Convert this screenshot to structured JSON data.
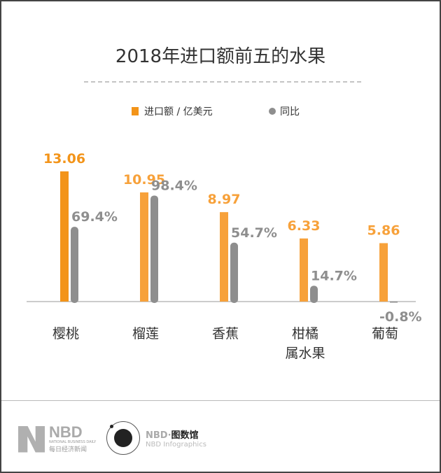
{
  "chart_data": {
    "type": "bar",
    "title": "2018年进口额前五的水果",
    "categories": [
      "樱桃",
      "榴莲",
      "香蕉",
      "柑橘\n属水果",
      "葡萄"
    ],
    "series": [
      {
        "name": "进口额 / 亿美元",
        "values": [
          13.06,
          10.95,
          8.97,
          6.33,
          5.86
        ],
        "labels": [
          "13.06",
          "10.95",
          "8.97",
          "6.33",
          "5.86"
        ],
        "color": "#f7a13a",
        "first_color": "#f39419"
      },
      {
        "name": "同比",
        "values": [
          69.4,
          98.4,
          54.7,
          14.7,
          -0.8
        ],
        "labels": [
          "69.4%",
          "98.4%",
          "54.7%",
          "14.7%",
          "-0.8%"
        ],
        "color": "#8e8e8e"
      }
    ],
    "legend": "top-center",
    "grid": false
  },
  "footer": {
    "logo1_main": "NBD",
    "logo1_en": "NATIONAL BUSINESS DAILY",
    "logo1_cn": "每日经济新闻",
    "logo2_main": "NBD·",
    "logo2_cn": "图数馆",
    "logo2_en": "NBD Infographics"
  }
}
